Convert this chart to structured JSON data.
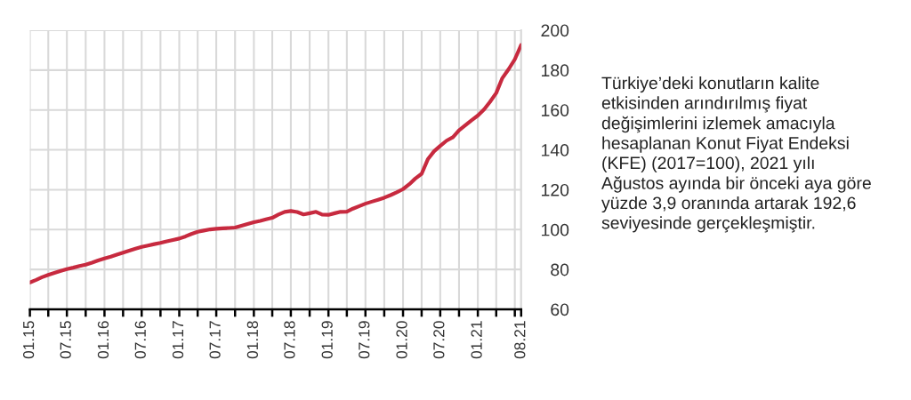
{
  "chart_data": {
    "type": "line",
    "x": [
      "2015-01",
      "2015-02",
      "2015-03",
      "2015-04",
      "2015-05",
      "2015-06",
      "2015-07",
      "2015-08",
      "2015-09",
      "2015-10",
      "2015-11",
      "2015-12",
      "2016-01",
      "2016-02",
      "2016-03",
      "2016-04",
      "2016-05",
      "2016-06",
      "2016-07",
      "2016-08",
      "2016-09",
      "2016-10",
      "2016-11",
      "2016-12",
      "2017-01",
      "2017-02",
      "2017-03",
      "2017-04",
      "2017-05",
      "2017-06",
      "2017-07",
      "2017-08",
      "2017-09",
      "2017-10",
      "2017-11",
      "2017-12",
      "2018-01",
      "2018-02",
      "2018-03",
      "2018-04",
      "2018-05",
      "2018-06",
      "2018-07",
      "2018-08",
      "2018-09",
      "2018-10",
      "2018-11",
      "2018-12",
      "2019-01",
      "2019-02",
      "2019-03",
      "2019-04",
      "2019-05",
      "2019-06",
      "2019-07",
      "2019-08",
      "2019-09",
      "2019-10",
      "2019-11",
      "2019-12",
      "2020-01",
      "2020-02",
      "2020-03",
      "2020-04",
      "2020-05",
      "2020-06",
      "2020-07",
      "2020-08",
      "2020-09",
      "2020-10",
      "2020-11",
      "2020-12",
      "2021-01",
      "2021-02",
      "2021-03",
      "2021-04",
      "2021-05",
      "2021-06",
      "2021-07",
      "2021-08"
    ],
    "series": [
      {
        "color": "#c72a3f",
        "values": [
          73.5,
          74.8,
          76.1,
          77.3,
          78.3,
          79.3,
          80.2,
          80.9,
          81.7,
          82.4,
          83.4,
          84.5,
          85.5,
          86.4,
          87.4,
          88.4,
          89.4,
          90.4,
          91.3,
          92.0,
          92.7,
          93.3,
          94.1,
          94.8,
          95.5,
          96.6,
          97.8,
          98.9,
          99.5,
          100.1,
          100.4,
          100.6,
          100.8,
          101.0,
          101.9,
          102.8,
          103.7,
          104.4,
          105.1,
          105.9,
          107.5,
          108.9,
          109.3,
          108.8,
          107.6,
          108.2,
          108.9,
          107.5,
          107.4,
          108.2,
          108.9,
          109.0,
          110.5,
          111.8,
          113.0,
          114.0,
          115.0,
          116.0,
          117.3,
          118.7,
          120.3,
          122.8,
          125.6,
          128.0,
          135.2,
          139.3,
          142.0,
          144.6,
          146.3,
          149.8,
          152.3,
          154.8,
          157.2,
          160.3,
          164.0,
          168.5,
          176.0,
          180.5,
          185.4,
          192.6
        ]
      }
    ],
    "xlim": [
      "2015-01",
      "2021-08"
    ],
    "xticks": [
      {
        "value": "2015-01",
        "label": "01.15"
      },
      {
        "value": "2015-04",
        "label": null
      },
      {
        "value": "2015-07",
        "label": "07.15"
      },
      {
        "value": "2015-10",
        "label": null
      },
      {
        "value": "2016-01",
        "label": "01.16"
      },
      {
        "value": "2016-04",
        "label": null
      },
      {
        "value": "2016-07",
        "label": "07.16"
      },
      {
        "value": "2016-10",
        "label": null
      },
      {
        "value": "2017-01",
        "label": "01.17"
      },
      {
        "value": "2017-04",
        "label": null
      },
      {
        "value": "2017-07",
        "label": "07.17"
      },
      {
        "value": "2017-10",
        "label": null
      },
      {
        "value": "2018-01",
        "label": "01.18"
      },
      {
        "value": "2018-04",
        "label": null
      },
      {
        "value": "2018-07",
        "label": "07.18"
      },
      {
        "value": "2018-10",
        "label": null
      },
      {
        "value": "2019-01",
        "label": "01.19"
      },
      {
        "value": "2019-04",
        "label": null
      },
      {
        "value": "2019-07",
        "label": "07.19"
      },
      {
        "value": "2019-10",
        "label": null
      },
      {
        "value": "2020-01",
        "label": "01.20"
      },
      {
        "value": "2020-04",
        "label": null
      },
      {
        "value": "2020-07",
        "label": "07.20"
      },
      {
        "value": "2020-10",
        "label": null
      },
      {
        "value": "2021-01",
        "label": "01.21"
      },
      {
        "value": "2021-04",
        "label": null
      },
      {
        "value": "2021-07",
        "label": null
      },
      {
        "value": "2021-08",
        "label": "08.21"
      }
    ],
    "ylim": [
      60,
      200
    ],
    "yticks": [
      60,
      80,
      100,
      120,
      140,
      160,
      180,
      200
    ],
    "grid": true,
    "annotations": [
      "Türkiye’deki konutların kalite etkisinden arındırılmış fiyat değişimlerini izlemek amacıyla hesaplanan Konut Fiyat Endeksi (KFE) (2017=100), 2021 yılı Ağustos ayında bir önceki aya göre yüzde 3,9 oranında artarak 192,6 seviyesinde gerçekleşmiştir."
    ]
  }
}
